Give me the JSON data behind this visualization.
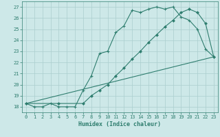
{
  "xlabel": "Humidex (Indice chaleur)",
  "xlim": [
    -0.5,
    23.5
  ],
  "ylim": [
    17.5,
    27.5
  ],
  "yticks": [
    18,
    19,
    20,
    21,
    22,
    23,
    24,
    25,
    26,
    27
  ],
  "xticks": [
    0,
    1,
    2,
    3,
    4,
    5,
    6,
    7,
    8,
    9,
    10,
    11,
    12,
    13,
    14,
    15,
    16,
    17,
    18,
    19,
    20,
    21,
    22,
    23
  ],
  "bg_color": "#cde8e8",
  "line_color": "#2e7d6e",
  "grid_color": "#aacece",
  "line1_x": [
    0,
    1,
    2,
    3,
    4,
    5,
    6,
    7,
    8,
    9,
    10,
    11,
    12,
    13,
    14,
    15,
    16,
    17,
    18,
    19,
    20,
    21,
    22,
    23
  ],
  "line1_y": [
    18.3,
    18.0,
    18.0,
    18.3,
    18.0,
    18.0,
    18.0,
    19.5,
    20.8,
    22.8,
    23.0,
    24.7,
    25.3,
    26.7,
    26.5,
    26.8,
    27.0,
    26.8,
    27.0,
    26.1,
    25.8,
    25.0,
    23.2,
    22.5
  ],
  "line2_x": [
    0,
    4,
    7,
    8,
    9,
    10,
    11,
    12,
    13,
    14,
    15,
    16,
    17,
    18,
    19,
    20,
    21,
    22,
    23
  ],
  "line2_y": [
    18.3,
    18.3,
    18.3,
    19.0,
    19.5,
    20.0,
    20.8,
    21.5,
    22.3,
    23.0,
    23.8,
    24.5,
    25.2,
    25.8,
    26.5,
    26.8,
    26.5,
    25.5,
    22.5
  ],
  "line3_x": [
    0,
    23
  ],
  "line3_y": [
    18.3,
    22.5
  ]
}
